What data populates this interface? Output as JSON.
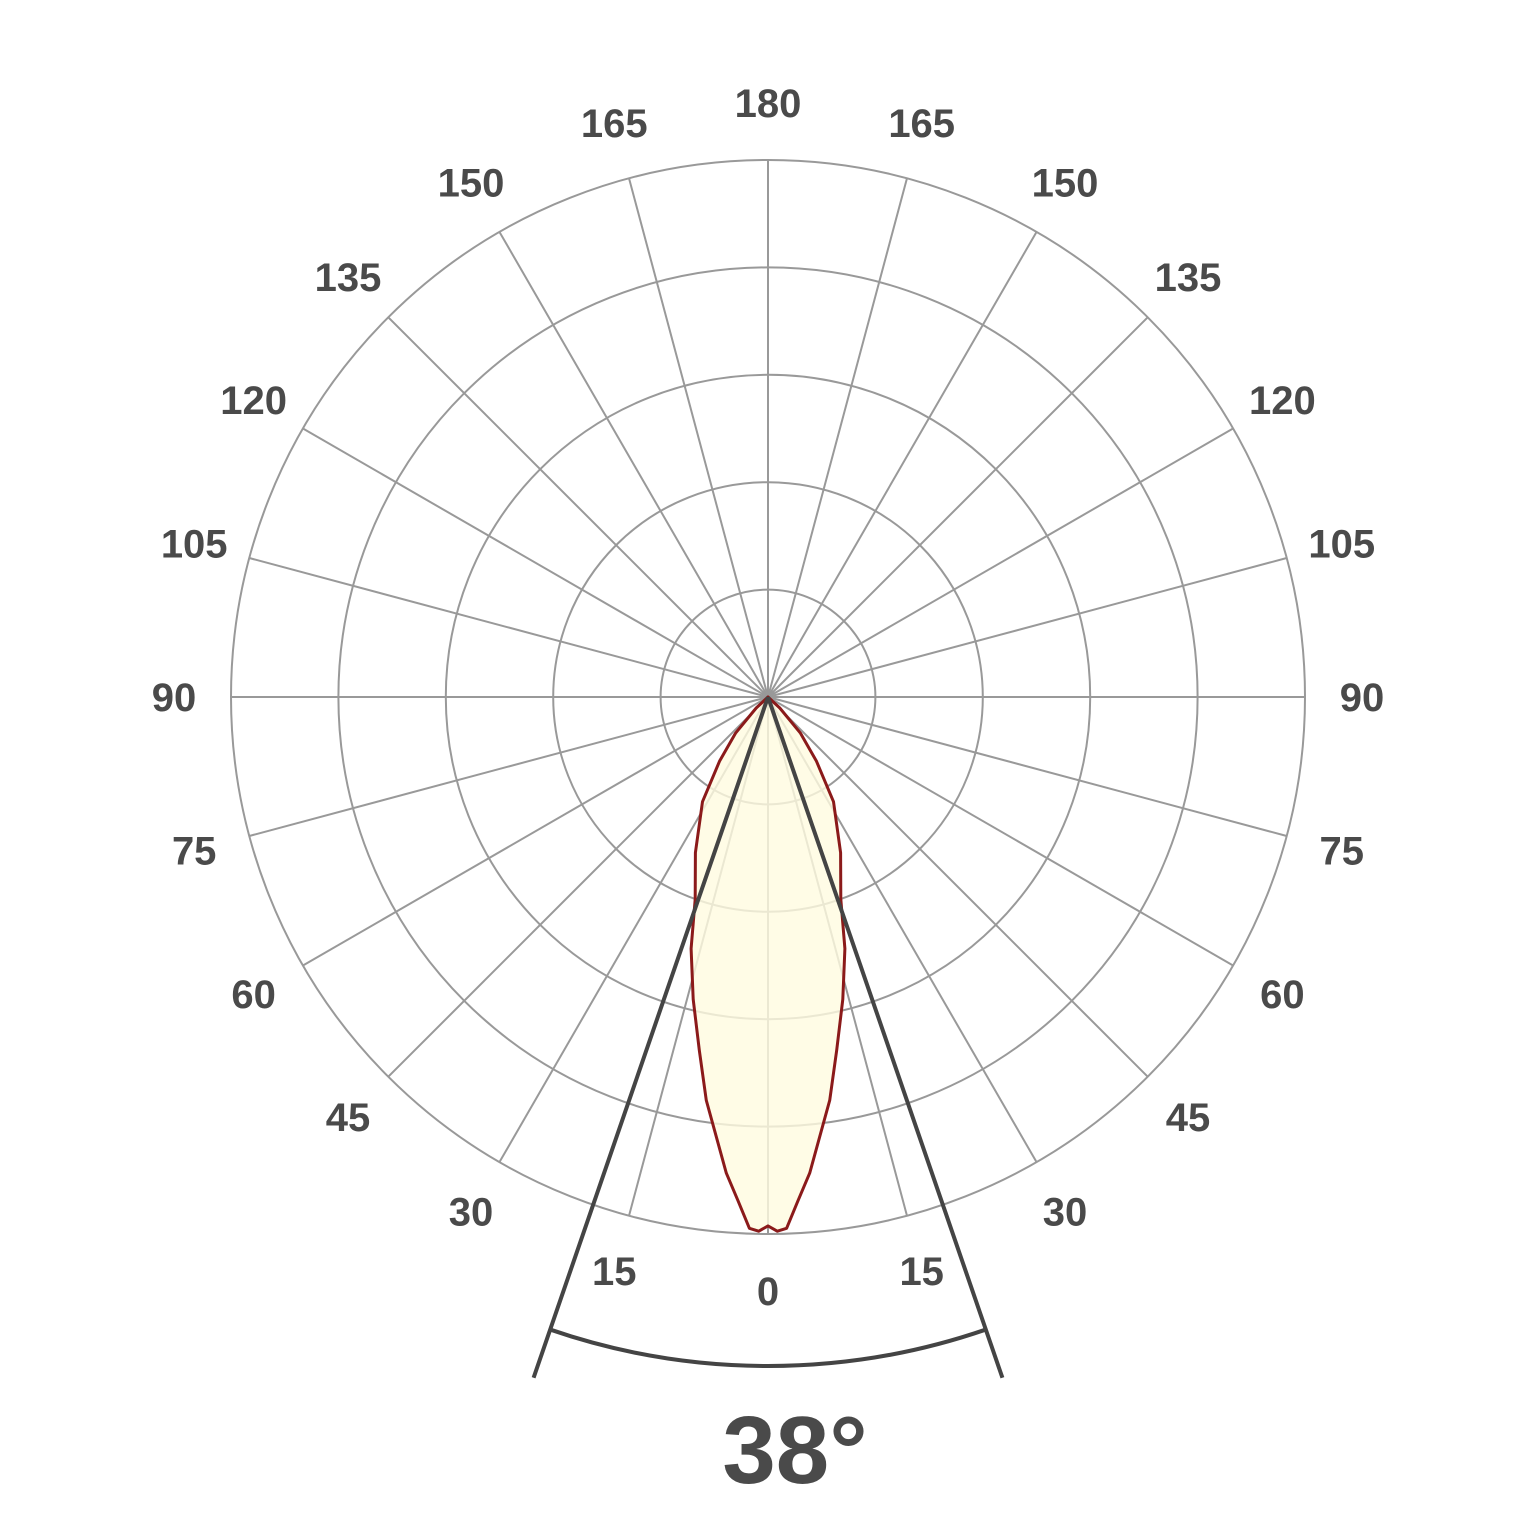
{
  "chart_data": {
    "type": "polar",
    "title": "",
    "angle_tick_labels": [
      "0",
      "15",
      "30",
      "45",
      "60",
      "75",
      "90",
      "105",
      "120",
      "135",
      "150",
      "165",
      "180"
    ],
    "angle_step_deg": 15,
    "radial_rings": 5,
    "radial_range": [
      0,
      1
    ],
    "grid": true,
    "series": [
      {
        "symmetric": true,
        "angles_deg": [
          0,
          1,
          2,
          3.4,
          5,
          8.7,
          11,
          13.9,
          17,
          19.8,
          25,
          32,
          37,
          42,
          47,
          52,
          90
        ],
        "relative_intensity": [
          0.985,
          0.995,
          0.99,
          0.94,
          0.89,
          0.76,
          0.67,
          0.58,
          0.49,
          0.4,
          0.32,
          0.23,
          0.15,
          0.09,
          0.03,
          0,
          0
        ]
      }
    ],
    "beam_angle_deg": 38,
    "beam_angle_label": "38°",
    "colors": {
      "grid": "#999999",
      "curve": "#8b1a1a",
      "fill": "#fffbe0",
      "beam_lines": "#444444",
      "text": "#4a4a4a"
    }
  }
}
